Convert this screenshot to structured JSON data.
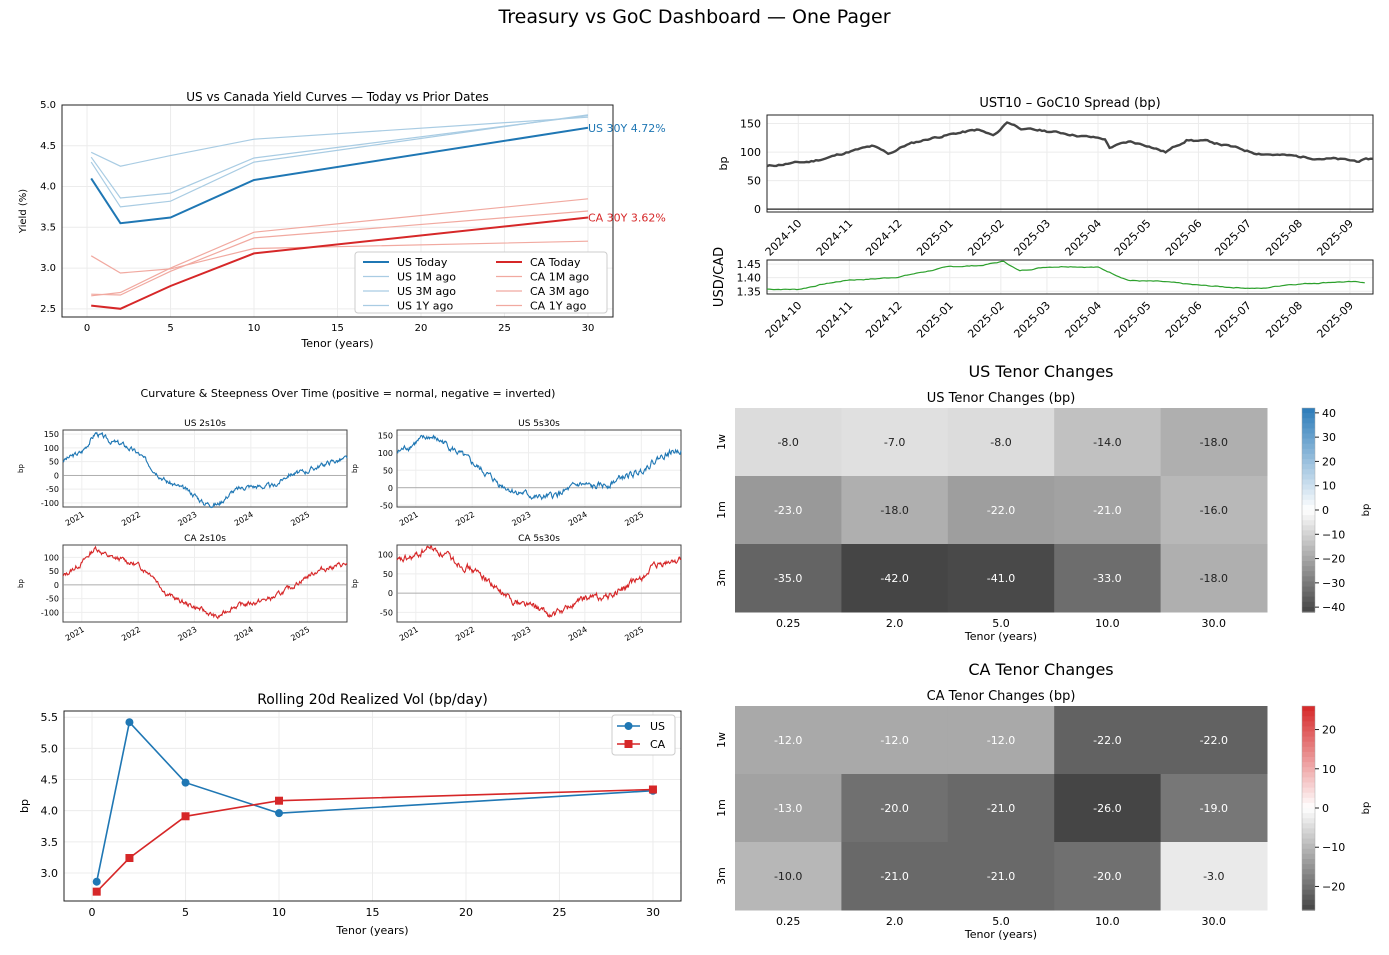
{
  "page": {
    "title": "Treasury vs GoC Dashboard — One Pager"
  },
  "colors": {
    "us": "#1f77b4",
    "ca": "#d62728",
    "spread": "#444444",
    "fx": "#2ca02c",
    "us_light": "#a9cce3",
    "ca_light": "#f1a9a0"
  },
  "chart_data": [
    {
      "id": "yield_curves",
      "type": "line",
      "title": "US vs Canada Yield Curves — Today vs Prior Dates",
      "xlabel": "Tenor (years)",
      "ylabel": "Yield (%)",
      "x": [
        0.25,
        2,
        5,
        10,
        30
      ],
      "xlim": [
        -1.5,
        31.5
      ],
      "ylim": [
        2.4,
        5.0
      ],
      "xticks": [
        0,
        5,
        10,
        15,
        20,
        25,
        30
      ],
      "yticks": [
        2.5,
        3.0,
        3.5,
        4.0,
        4.5,
        5.0
      ],
      "legend_position": "lower-right",
      "legend_columns": 2,
      "series": [
        {
          "name": "US Today",
          "values": [
            4.1,
            3.55,
            3.62,
            4.08,
            4.72
          ],
          "color": "#1f77b4",
          "strong": true
        },
        {
          "name": "US 1M ago",
          "values": [
            4.3,
            3.75,
            3.82,
            4.3,
            4.88
          ],
          "color": "#a9cce3"
        },
        {
          "name": "US 3M ago",
          "values": [
            4.36,
            3.86,
            3.92,
            4.35,
            4.87
          ],
          "color": "#a9cce3"
        },
        {
          "name": "US 1Y ago",
          "values": [
            4.42,
            4.25,
            4.38,
            4.58,
            4.85
          ],
          "color": "#a9cce3"
        },
        {
          "name": "CA Today",
          "values": [
            2.54,
            2.5,
            2.78,
            3.18,
            3.62
          ],
          "color": "#d62728",
          "strong": true
        },
        {
          "name": "CA 1M ago",
          "values": [
            2.66,
            2.7,
            3.0,
            3.44,
            3.85
          ],
          "color": "#f1a9a0"
        },
        {
          "name": "CA 3M ago",
          "values": [
            2.68,
            2.67,
            2.96,
            3.37,
            3.7
          ],
          "color": "#f1a9a0"
        },
        {
          "name": "CA 1Y ago",
          "values": [
            3.15,
            2.94,
            2.99,
            3.24,
            3.33
          ],
          "color": "#f1a9a0"
        }
      ],
      "annotations": [
        {
          "text": "US 30Y 4.72%",
          "x": 30,
          "y": 4.72,
          "color": "#1f77b4"
        },
        {
          "text": "CA 30Y 3.62%",
          "x": 30,
          "y": 3.62,
          "color": "#d62728"
        }
      ]
    },
    {
      "id": "spread",
      "type": "line",
      "title": "UST10 – GoC10 Spread (bp)",
      "ylabel": "bp",
      "ylim": [
        -5,
        165
      ],
      "yticks": [
        0,
        50,
        100,
        150
      ],
      "x_range": [
        "2024-09-12",
        "2025-09-15"
      ],
      "xticks": [
        "2024-10",
        "2024-11",
        "2024-12",
        "2025-01",
        "2025-02",
        "2025-03",
        "2025-04",
        "2025-05",
        "2025-06",
        "2025-07",
        "2025-08",
        "2025-09"
      ],
      "hline": 0,
      "points": [
        [
          "2024-09-12",
          75
        ],
        [
          "2024-09-25",
          80
        ],
        [
          "2024-10-08",
          83
        ],
        [
          "2024-10-20",
          91
        ],
        [
          "2024-11-01",
          101
        ],
        [
          "2024-11-15",
          110
        ],
        [
          "2024-11-25",
          97
        ],
        [
          "2024-12-05",
          112
        ],
        [
          "2024-12-20",
          124
        ],
        [
          "2025-01-05",
          133
        ],
        [
          "2025-01-18",
          139
        ],
        [
          "2025-01-28",
          128
        ],
        [
          "2025-02-05",
          153
        ],
        [
          "2025-02-15",
          140
        ],
        [
          "2025-02-28",
          137
        ],
        [
          "2025-03-12",
          133
        ],
        [
          "2025-03-25",
          127
        ],
        [
          "2025-04-05",
          123
        ],
        [
          "2025-04-08",
          108
        ],
        [
          "2025-04-20",
          118
        ],
        [
          "2025-05-01",
          112
        ],
        [
          "2025-05-12",
          100
        ],
        [
          "2025-05-25",
          122
        ],
        [
          "2025-06-08",
          118
        ],
        [
          "2025-06-20",
          110
        ],
        [
          "2025-07-05",
          99
        ],
        [
          "2025-07-20",
          95
        ],
        [
          "2025-08-05",
          91
        ],
        [
          "2025-08-22",
          88
        ],
        [
          "2025-09-05",
          84
        ],
        [
          "2025-09-15",
          88
        ]
      ]
    },
    {
      "id": "usdcad",
      "type": "line",
      "ylabel": "USD/CAD",
      "ylim": [
        1.34,
        1.465
      ],
      "yticks": [
        1.35,
        1.4,
        1.45
      ],
      "x_range": [
        "2024-09-12",
        "2025-09-15"
      ],
      "xticks": [
        "2024-10",
        "2024-11",
        "2024-12",
        "2025-01",
        "2025-02",
        "2025-03",
        "2025-04",
        "2025-05",
        "2025-06",
        "2025-07",
        "2025-08",
        "2025-09"
      ],
      "points": [
        [
          "2024-09-12",
          1.358
        ],
        [
          "2024-10-01",
          1.357
        ],
        [
          "2024-10-15",
          1.375
        ],
        [
          "2024-11-01",
          1.392
        ],
        [
          "2024-11-15",
          1.395
        ],
        [
          "2024-12-01",
          1.403
        ],
        [
          "2024-12-15",
          1.42
        ],
        [
          "2025-01-01",
          1.44
        ],
        [
          "2025-01-20",
          1.445
        ],
        [
          "2025-02-03",
          1.46
        ],
        [
          "2025-02-12",
          1.425
        ],
        [
          "2025-03-01",
          1.44
        ],
        [
          "2025-03-15",
          1.442
        ],
        [
          "2025-04-01",
          1.438
        ],
        [
          "2025-04-08",
          1.42
        ],
        [
          "2025-04-20",
          1.39
        ],
        [
          "2025-05-10",
          1.385
        ],
        [
          "2025-06-01",
          1.372
        ],
        [
          "2025-06-20",
          1.365
        ],
        [
          "2025-07-10",
          1.36
        ],
        [
          "2025-07-25",
          1.375
        ],
        [
          "2025-08-10",
          1.38
        ],
        [
          "2025-08-25",
          1.385
        ],
        [
          "2025-09-10",
          1.383
        ]
      ]
    },
    {
      "id": "curvature",
      "type": "line",
      "title": "Curvature & Steepness Over Time (positive = normal, negative = inverted)",
      "x_range": [
        "2020-09-01",
        "2025-09-15"
      ],
      "xticks": [
        "2021",
        "2022",
        "2023",
        "2024",
        "2025"
      ],
      "ylabel": "bp",
      "panels": [
        {
          "title": "US 2s10s",
          "color": "#1f77b4",
          "ylim": [
            -115,
            165
          ],
          "yticks": [
            -100,
            -50,
            0,
            50,
            100,
            150
          ],
          "points": [
            [
              "2020-09-01",
              55
            ],
            [
              "2021-01-01",
              85
            ],
            [
              "2021-04-01",
              155
            ],
            [
              "2021-07-01",
              125
            ],
            [
              "2021-10-01",
              110
            ],
            [
              "2022-01-01",
              80
            ],
            [
              "2022-04-01",
              30
            ],
            [
              "2022-07-01",
              -20
            ],
            [
              "2022-10-01",
              -45
            ],
            [
              "2023-01-01",
              -70
            ],
            [
              "2023-03-01",
              -100
            ],
            [
              "2023-06-01",
              -105
            ],
            [
              "2023-09-01",
              -60
            ],
            [
              "2023-12-01",
              -40
            ],
            [
              "2024-03-01",
              -40
            ],
            [
              "2024-06-01",
              -40
            ],
            [
              "2024-09-01",
              5
            ],
            [
              "2024-12-01",
              10
            ],
            [
              "2025-03-01",
              30
            ],
            [
              "2025-06-01",
              50
            ],
            [
              "2025-09-15",
              60
            ]
          ]
        },
        {
          "title": "US 5s30s",
          "color": "#1f77b4",
          "ylim": [
            -55,
            165
          ],
          "yticks": [
            -50,
            0,
            50,
            100,
            150
          ],
          "points": [
            [
              "2020-09-01",
              100
            ],
            [
              "2021-01-01",
              130
            ],
            [
              "2021-04-01",
              145
            ],
            [
              "2021-07-01",
              130
            ],
            [
              "2021-10-01",
              100
            ],
            [
              "2022-01-01",
              70
            ],
            [
              "2022-04-01",
              40
            ],
            [
              "2022-07-01",
              10
            ],
            [
              "2022-10-01",
              -10
            ],
            [
              "2023-01-01",
              -20
            ],
            [
              "2023-03-01",
              -30
            ],
            [
              "2023-06-01",
              -25
            ],
            [
              "2023-09-01",
              -10
            ],
            [
              "2023-12-01",
              10
            ],
            [
              "2024-03-01",
              0
            ],
            [
              "2024-06-01",
              10
            ],
            [
              "2024-09-01",
              30
            ],
            [
              "2024-12-01",
              40
            ],
            [
              "2025-03-01",
              70
            ],
            [
              "2025-06-01",
              95
            ],
            [
              "2025-09-15",
              110
            ]
          ]
        },
        {
          "title": "CA 2s10s",
          "color": "#d62728",
          "ylim": [
            -135,
            145
          ],
          "yticks": [
            -100,
            -50,
            0,
            50,
            100
          ],
          "points": [
            [
              "2020-09-01",
              30
            ],
            [
              "2021-01-01",
              80
            ],
            [
              "2021-04-01",
              135
            ],
            [
              "2021-07-01",
              100
            ],
            [
              "2021-10-01",
              90
            ],
            [
              "2022-01-01",
              70
            ],
            [
              "2022-04-01",
              40
            ],
            [
              "2022-07-01",
              -30
            ],
            [
              "2022-10-01",
              -60
            ],
            [
              "2023-01-01",
              -80
            ],
            [
              "2023-03-01",
              -95
            ],
            [
              "2023-06-01",
              -120
            ],
            [
              "2023-09-01",
              -80
            ],
            [
              "2023-12-01",
              -70
            ],
            [
              "2024-03-01",
              -60
            ],
            [
              "2024-06-01",
              -45
            ],
            [
              "2024-09-01",
              -15
            ],
            [
              "2024-12-01",
              20
            ],
            [
              "2025-03-01",
              50
            ],
            [
              "2025-06-01",
              65
            ],
            [
              "2025-09-15",
              75
            ]
          ]
        },
        {
          "title": "CA 5s30s",
          "color": "#d62728",
          "ylim": [
            -75,
            125
          ],
          "yticks": [
            -50,
            0,
            50,
            100
          ],
          "points": [
            [
              "2020-09-01",
              80
            ],
            [
              "2021-01-01",
              95
            ],
            [
              "2021-04-01",
              120
            ],
            [
              "2021-07-01",
              100
            ],
            [
              "2021-10-01",
              80
            ],
            [
              "2022-01-01",
              60
            ],
            [
              "2022-04-01",
              40
            ],
            [
              "2022-07-01",
              0
            ],
            [
              "2022-10-01",
              -20
            ],
            [
              "2023-01-01",
              -30
            ],
            [
              "2023-03-01",
              -40
            ],
            [
              "2023-06-01",
              -60
            ],
            [
              "2023-09-01",
              -40
            ],
            [
              "2023-12-01",
              -20
            ],
            [
              "2024-03-01",
              -10
            ],
            [
              "2024-06-01",
              -10
            ],
            [
              "2024-09-01",
              10
            ],
            [
              "2024-12-01",
              30
            ],
            [
              "2025-03-01",
              60
            ],
            [
              "2025-06-01",
              75
            ],
            [
              "2025-09-15",
              90
            ]
          ]
        }
      ]
    },
    {
      "id": "vol",
      "type": "line",
      "title": "Rolling 20d Realized Vol (bp/day)",
      "xlabel": "Tenor (years)",
      "ylabel": "bp",
      "x": [
        0.25,
        2,
        5,
        10,
        30
      ],
      "xlim": [
        -1.5,
        31.5
      ],
      "ylim": [
        2.55,
        5.6
      ],
      "xticks": [
        0,
        5,
        10,
        15,
        20,
        25,
        30
      ],
      "yticks": [
        3.0,
        3.5,
        4.0,
        4.5,
        5.0,
        5.5
      ],
      "legend_position": "top-right",
      "series": [
        {
          "name": "US",
          "values": [
            2.86,
            5.42,
            4.45,
            3.96,
            4.32
          ],
          "color": "#1f77b4",
          "marker": "circle"
        },
        {
          "name": "CA",
          "values": [
            2.7,
            3.24,
            3.91,
            4.16,
            4.34
          ],
          "color": "#d62728",
          "marker": "square"
        }
      ]
    },
    {
      "id": "us_heatmap",
      "type": "heatmap",
      "suptitle": "US Tenor Changes",
      "title": "US Tenor Changes (bp)",
      "xlabel": "Tenor (years)",
      "colorbar_label": "bp",
      "rows": [
        "1w",
        "1m",
        "3m"
      ],
      "cols": [
        "0.25",
        "2.0",
        "5.0",
        "10.0",
        "30.0"
      ],
      "values": [
        [
          -8.0,
          -7.0,
          -8.0,
          -14.0,
          -18.0
        ],
        [
          -23.0,
          -18.0,
          -22.0,
          -21.0,
          -16.0
        ],
        [
          -35.0,
          -42.0,
          -41.0,
          -33.0,
          -18.0
        ]
      ],
      "vmin": -42,
      "vmax": 42,
      "pos_color": "#2b7bb9",
      "cbar_ticks": [
        -40,
        -30,
        -20,
        -10,
        0,
        10,
        20,
        30,
        40
      ]
    },
    {
      "id": "ca_heatmap",
      "type": "heatmap",
      "suptitle": "CA Tenor Changes",
      "title": "CA Tenor Changes (bp)",
      "xlabel": "Tenor (years)",
      "colorbar_label": "bp",
      "rows": [
        "1w",
        "1m",
        "3m"
      ],
      "cols": [
        "0.25",
        "2.0",
        "5.0",
        "10.0",
        "30.0"
      ],
      "values": [
        [
          -12.0,
          -12.0,
          -12.0,
          -22.0,
          -22.0
        ],
        [
          -13.0,
          -20.0,
          -21.0,
          -26.0,
          -19.0
        ],
        [
          -10.0,
          -21.0,
          -21.0,
          -20.0,
          -3.0
        ]
      ],
      "vmin": -26,
      "vmax": 26,
      "pos_color": "#d62728",
      "cbar_ticks": [
        -20,
        -10,
        0,
        10,
        20
      ]
    }
  ]
}
